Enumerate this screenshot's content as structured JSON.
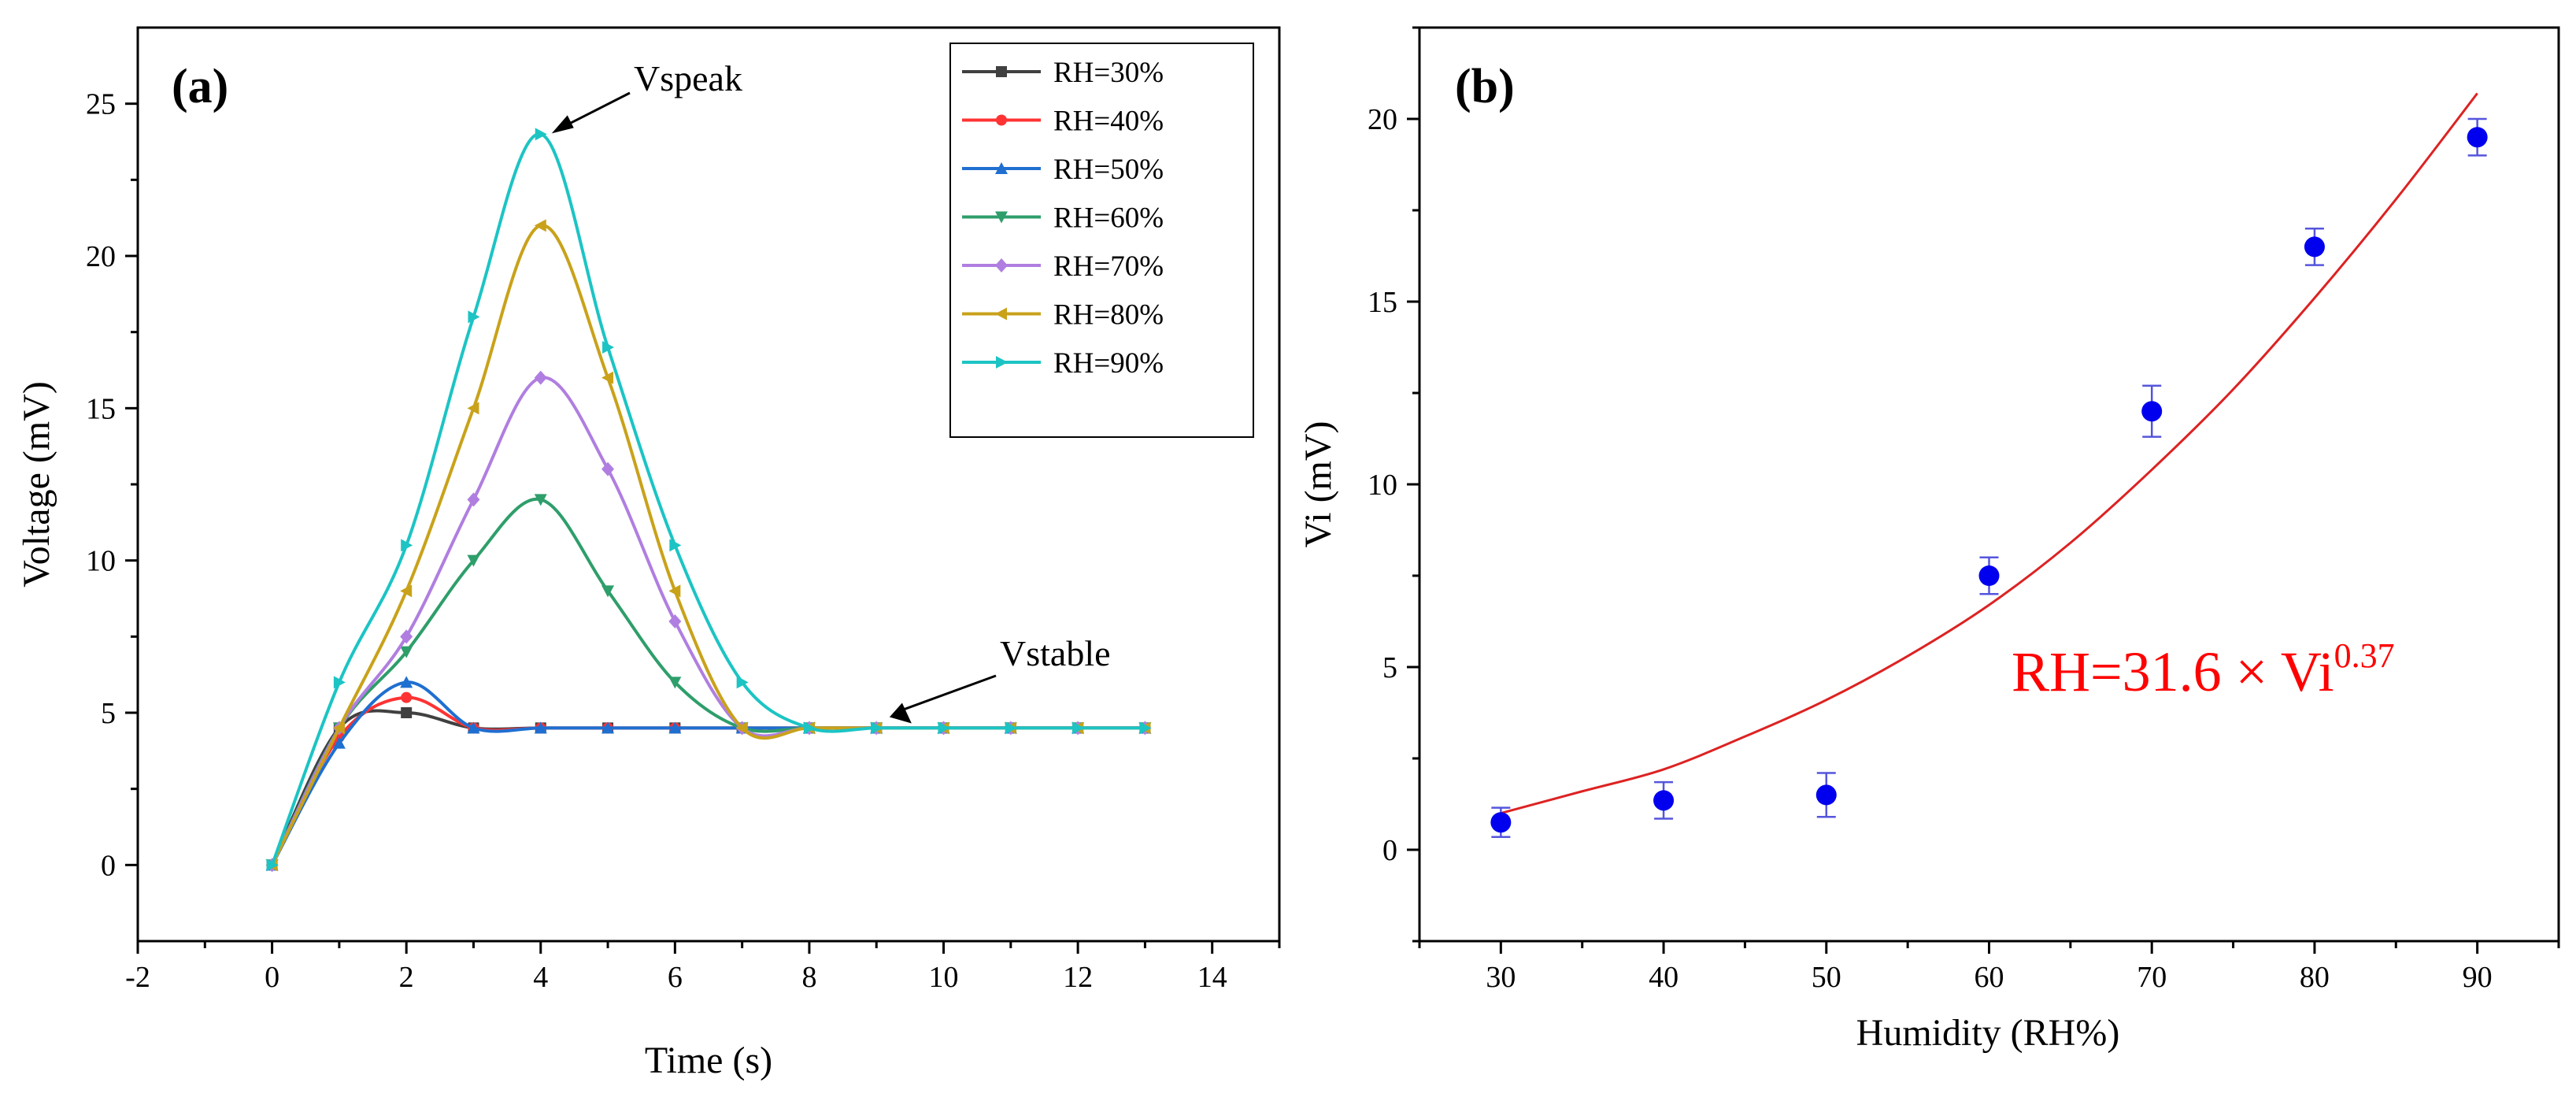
{
  "chart_data": [
    {
      "type": "line",
      "panel_label": "(a)",
      "xlabel": "Time (s)",
      "ylabel": "Voltage (mV)",
      "xlim": [
        -2,
        15
      ],
      "ylim": [
        -2.5,
        27.5
      ],
      "xticks": [
        -2,
        0,
        2,
        4,
        6,
        8,
        10,
        12,
        14
      ],
      "yticks": [
        0,
        5,
        10,
        15,
        20,
        25
      ],
      "legend_position": "top-right",
      "x": [
        0,
        1,
        2,
        3,
        4,
        5,
        6,
        7,
        8,
        9,
        10,
        11,
        12,
        13
      ],
      "series": [
        {
          "name": "RH=30%",
          "color": "#404040",
          "marker": "square",
          "values": [
            0,
            4.5,
            5.0,
            4.5,
            4.5,
            4.5,
            4.5,
            4.5,
            4.5,
            4.5,
            4.5,
            4.5,
            4.5,
            4.5
          ]
        },
        {
          "name": "RH=40%",
          "color": "#ff3333",
          "marker": "circle",
          "values": [
            0,
            4.2,
            5.5,
            4.5,
            4.5,
            4.5,
            4.5,
            4.5,
            4.5,
            4.5,
            4.5,
            4.5,
            4.5,
            4.5
          ]
        },
        {
          "name": "RH=50%",
          "color": "#1f6fd1",
          "marker": "triangle-up",
          "values": [
            0,
            4.0,
            6.0,
            4.5,
            4.5,
            4.5,
            4.5,
            4.5,
            4.5,
            4.5,
            4.5,
            4.5,
            4.5,
            4.5
          ]
        },
        {
          "name": "RH=60%",
          "color": "#2e9e6a",
          "marker": "triangle-down",
          "values": [
            0,
            4.5,
            7.0,
            10.0,
            12.0,
            9.0,
            6.0,
            4.5,
            4.5,
            4.5,
            4.5,
            4.5,
            4.5,
            4.5
          ]
        },
        {
          "name": "RH=70%",
          "color": "#b07ee0",
          "marker": "diamond",
          "values": [
            0,
            4.5,
            7.5,
            12.0,
            16.0,
            13.0,
            8.0,
            4.5,
            4.5,
            4.5,
            4.5,
            4.5,
            4.5,
            4.5
          ]
        },
        {
          "name": "RH=80%",
          "color": "#c9a21a",
          "marker": "triangle-left",
          "values": [
            0,
            4.5,
            9.0,
            15.0,
            21.0,
            16.0,
            9.0,
            4.5,
            4.5,
            4.5,
            4.5,
            4.5,
            4.5,
            4.5
          ]
        },
        {
          "name": "RH=90%",
          "color": "#1cc4c4",
          "marker": "triangle-right",
          "values": [
            0,
            6.0,
            10.5,
            18.0,
            24.0,
            17.0,
            10.5,
            6.0,
            4.5,
            4.5,
            4.5,
            4.5,
            4.5,
            4.5
          ]
        }
      ],
      "annotations": [
        {
          "text": "Vspeak",
          "points_to": [
            4,
            24
          ]
        },
        {
          "text": "Vstable",
          "points_to": [
            9.5,
            4.6
          ]
        }
      ]
    },
    {
      "type": "scatter",
      "panel_label": "(b)",
      "xlabel": "Humidity (RH%)",
      "ylabel": "Vi (mV)",
      "xlim": [
        25,
        95
      ],
      "ylim": [
        -2.5,
        22.5
      ],
      "xticks": [
        30,
        40,
        50,
        60,
        70,
        80,
        90
      ],
      "yticks": [
        0,
        5,
        10,
        15,
        20
      ],
      "series": [
        {
          "name": "Vi",
          "color": "#0000ee",
          "x": [
            30,
            40,
            50,
            60,
            70,
            80,
            90
          ],
          "y": [
            0.75,
            1.35,
            1.5,
            7.5,
            12.0,
            16.5,
            19.5
          ],
          "error": [
            0.4,
            0.5,
            0.6,
            0.5,
            0.7,
            0.5,
            0.5
          ]
        }
      ],
      "fit": {
        "color": "#dd2222",
        "x": [
          30,
          35,
          40,
          45,
          50,
          55,
          60,
          65,
          70,
          75,
          80,
          85,
          90
        ],
        "y": [
          1.0,
          1.6,
          2.2,
          3.1,
          4.1,
          5.3,
          6.7,
          8.4,
          10.4,
          12.6,
          15.1,
          17.8,
          20.7
        ]
      },
      "equation": {
        "base": "RH=31.6 × Vi",
        "exponent": "0.37"
      }
    }
  ]
}
